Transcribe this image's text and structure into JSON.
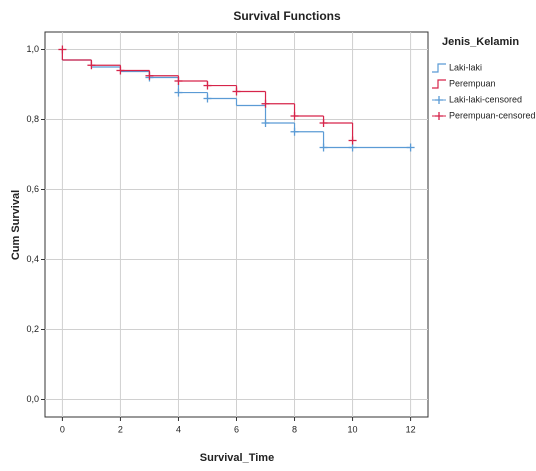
{
  "chart_data": {
    "type": "step",
    "title": "Survival Functions",
    "x_label": "Survival_Time",
    "y_label": "Cum Survival",
    "legend_title": "Jenis_Kelamin",
    "legend_position": "right",
    "grid": true,
    "xlim": [
      -0.6,
      12.6
    ],
    "xticks": [
      0,
      2,
      4,
      6,
      8,
      10,
      12
    ],
    "ylim": [
      -0.05,
      1.05
    ],
    "yticks": [
      {
        "value": 0,
        "label": "0,0"
      },
      {
        "value": 0.2,
        "label": "0,2"
      },
      {
        "value": 0.4,
        "label": "0,4"
      },
      {
        "value": 0.6,
        "label": "0,6"
      },
      {
        "value": 0.8,
        "label": "0,8"
      },
      {
        "value": 1,
        "label": "1,0"
      }
    ],
    "series": [
      {
        "name": "Laki-laki",
        "kind": "step",
        "color": "#5b9bd5",
        "x": [
          0,
          0,
          1,
          2,
          3,
          4,
          5,
          6,
          7,
          8,
          9,
          12
        ],
        "values": [
          1,
          0.97,
          0.95,
          0.937,
          0.92,
          0.877,
          0.86,
          0.84,
          0.79,
          0.765,
          0.72,
          0.72
        ]
      },
      {
        "name": "Perempuan",
        "kind": "step",
        "color": "#d6244a",
        "x": [
          0,
          0,
          1,
          2,
          3,
          4,
          5,
          6,
          7,
          8,
          9,
          10
        ],
        "values": [
          1,
          0.97,
          0.955,
          0.94,
          0.925,
          0.91,
          0.897,
          0.88,
          0.845,
          0.81,
          0.79,
          0.74
        ]
      },
      {
        "name": "Laki-laki-censored",
        "kind": "censored",
        "color": "#5b9bd5",
        "x": [
          3,
          4,
          5,
          7,
          8,
          9,
          10,
          12
        ],
        "values": [
          0.92,
          0.877,
          0.86,
          0.79,
          0.765,
          0.72,
          0.72,
          0.72
        ]
      },
      {
        "name": "Perempuan-censored",
        "kind": "censored",
        "color": "#d6244a",
        "x": [
          0,
          1,
          2,
          3,
          4,
          5,
          6,
          7,
          8,
          9,
          10
        ],
        "values": [
          1,
          0.955,
          0.94,
          0.925,
          0.91,
          0.897,
          0.88,
          0.845,
          0.81,
          0.79,
          0.74
        ]
      }
    ]
  }
}
